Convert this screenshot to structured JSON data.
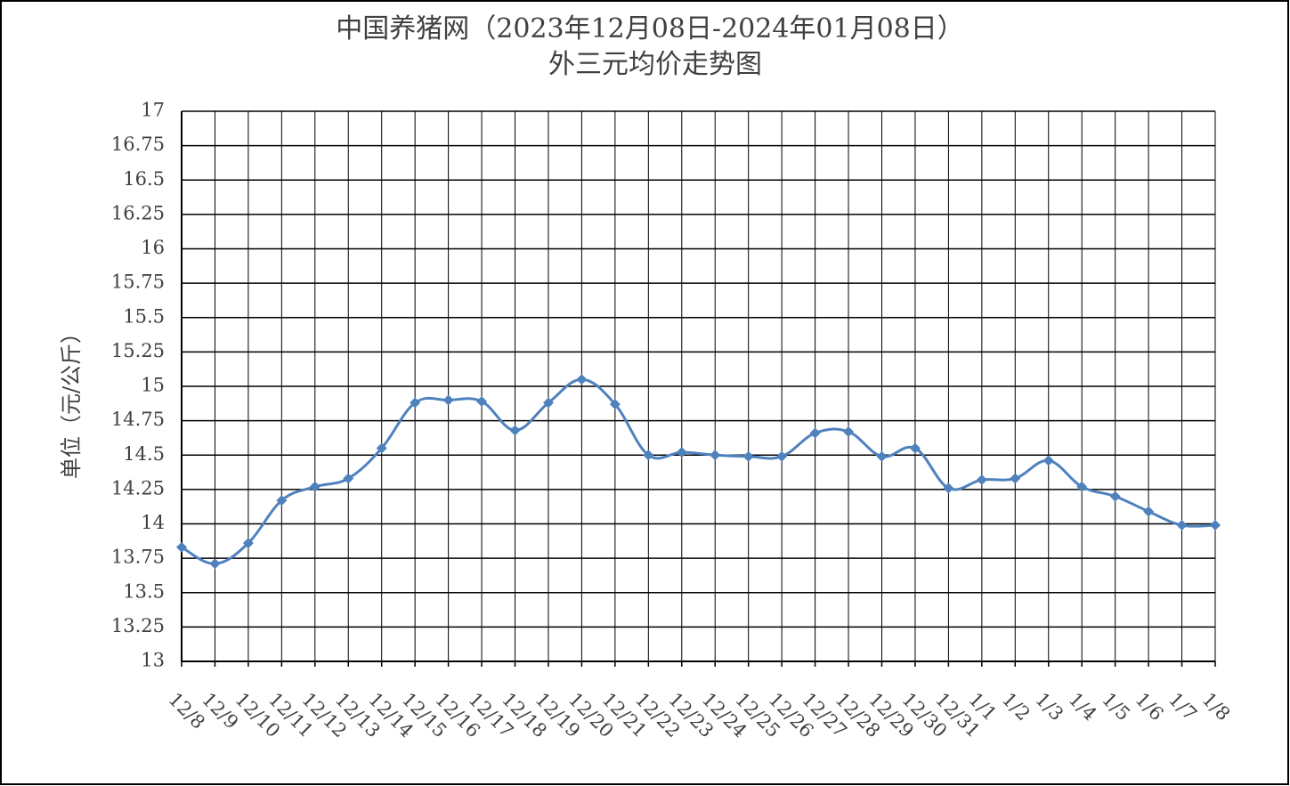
{
  "chart_data": {
    "type": "line",
    "title": "中国养猪网（2023年12月08日-2024年01月08日）",
    "subtitle": "外三元均价走势图",
    "y_label": "单位（元/公斤）",
    "categories": [
      "12/8",
      "12/9",
      "12/10",
      "12/11",
      "12/12",
      "12/13",
      "12/14",
      "12/15",
      "12/16",
      "12/17",
      "12/18",
      "12/19",
      "12/20",
      "12/21",
      "12/22",
      "12/23",
      "12/24",
      "12/25",
      "12/26",
      "12/27",
      "12/28",
      "12/29",
      "12/30",
      "12/31",
      "1/1",
      "1/2",
      "1/3",
      "1/4",
      "1/5",
      "1/6",
      "1/7",
      "1/8"
    ],
    "series": [
      {
        "color": "#4f81bd",
        "values": [
          13.83,
          13.71,
          13.86,
          14.17,
          14.27,
          14.33,
          14.55,
          14.88,
          14.9,
          14.89,
          14.68,
          14.88,
          15.05,
          14.87,
          14.5,
          14.52,
          14.5,
          14.49,
          14.49,
          14.66,
          14.67,
          14.49,
          14.55,
          14.26,
          14.32,
          14.33,
          14.46,
          14.27,
          14.2,
          14.09,
          13.99,
          13.99
        ]
      }
    ],
    "ylim": [
      13,
      17
    ],
    "yticks": [
      13,
      13.25,
      13.5,
      13.75,
      14,
      14.25,
      14.5,
      14.75,
      15,
      15.25,
      15.5,
      15.75,
      16,
      16.25,
      16.5,
      16.75,
      17
    ],
    "grid": true
  }
}
